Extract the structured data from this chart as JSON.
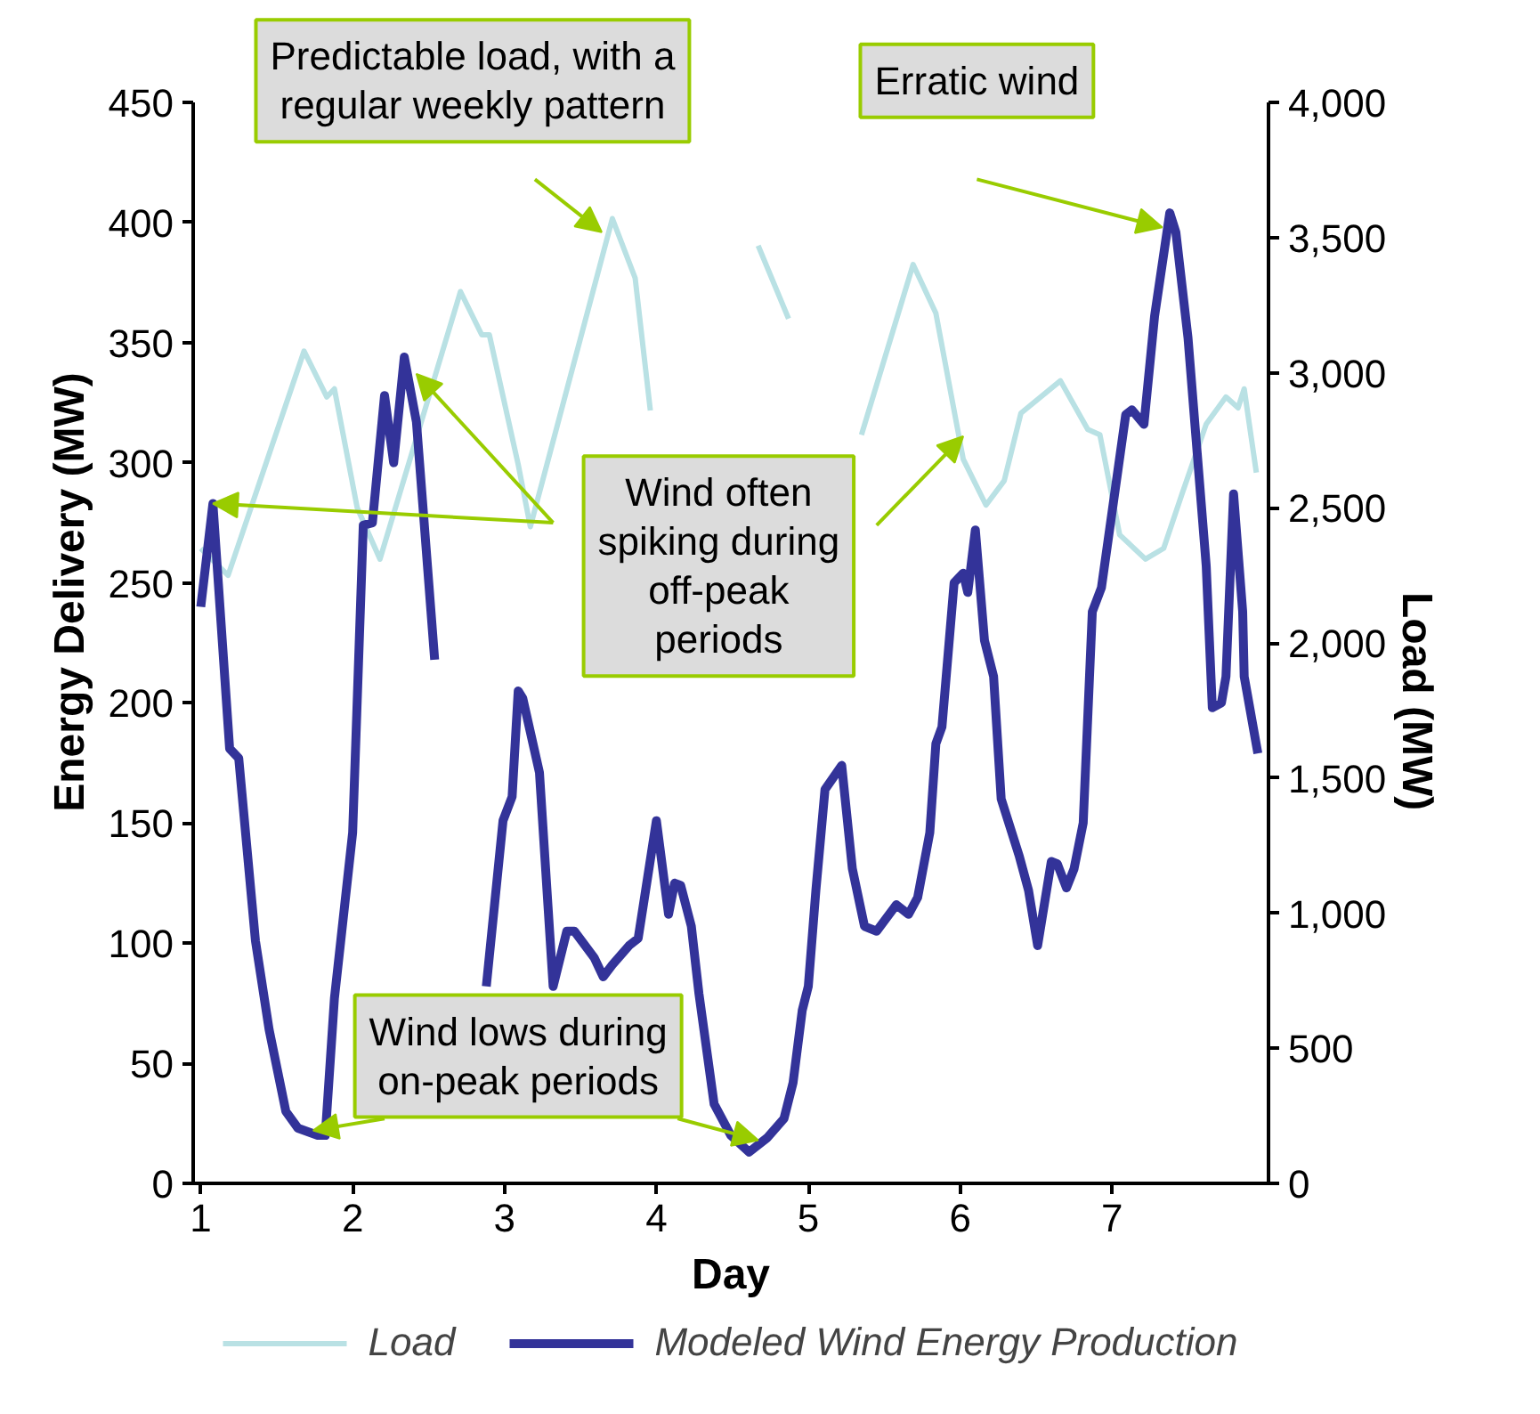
{
  "chart_data": {
    "type": "line",
    "xlabel": "Day",
    "ylabel": "Energy Delivery (MW)",
    "y2label": "Load (MW)",
    "xlim": [
      0.95,
      8.03
    ],
    "xticks": [
      1,
      2,
      3,
      4,
      5,
      6,
      7
    ],
    "ylim": [
      0,
      450
    ],
    "yticks": [
      0,
      50,
      100,
      150,
      200,
      250,
      300,
      350,
      400,
      450
    ],
    "y2lim": [
      0,
      4000
    ],
    "y2ticks": [
      0,
      500,
      {
        "value": 1000,
        "label": "1,000"
      },
      {
        "value": 1500,
        "label": "1,500"
      },
      {
        "value": 2000,
        "label": "2,000"
      },
      {
        "value": 2500,
        "label": "2,500"
      },
      {
        "value": 3000,
        "label": "3,000"
      },
      {
        "value": 3500,
        "label": "3,500"
      },
      {
        "value": 4000,
        "label": "4,000"
      }
    ],
    "grid": false,
    "legend": "bottom",
    "line_style": "solid",
    "marker": "none",
    "series": [
      {
        "name": "Load",
        "color": "#b9e1e4",
        "axis": "y2",
        "x": [
          1.0,
          1.18,
          1.68,
          1.83,
          1.88,
          2.03,
          2.18,
          2.71,
          2.85,
          2.9,
          3.09,
          3.17,
          3.71,
          3.86,
          3.96,
          4.16,
          4.67,
          4.87,
          5.0,
          5.08,
          5.22,
          5.35,
          5.69,
          5.84,
          6.02,
          6.17,
          6.29,
          6.4,
          6.66,
          6.84,
          6.92,
          7.05,
          7.22,
          7.34,
          7.46,
          7.62,
          7.75,
          7.83,
          7.87,
          7.95
        ],
        "values": [
          2350,
          2250,
          3080,
          2910,
          2940,
          2500,
          2310,
          3300,
          3140,
          3140,
          2660,
          2430,
          3570,
          3350,
          2860,
          null,
          3470,
          3200,
          null,
          null,
          null,
          2770,
          3400,
          3220,
          2680,
          2510,
          2600,
          2850,
          2970,
          2790,
          2770,
          2400,
          2310,
          2350,
          2550,
          2810,
          2910,
          2870,
          2940,
          2630
        ]
      },
      {
        "name": "Modeled Wind Energy Production",
        "color": "#333399",
        "axis": "y",
        "x": [
          1.0,
          1.08,
          1.19,
          1.25,
          1.36,
          1.45,
          1.56,
          1.64,
          1.77,
          1.82,
          1.88,
          2.0,
          2.07,
          2.13,
          2.21,
          2.27,
          2.34,
          2.42,
          2.54,
          2.7,
          2.78,
          2.88,
          2.99,
          3.05,
          3.09,
          3.12,
          3.23,
          3.32,
          3.41,
          3.46,
          3.59,
          3.65,
          3.71,
          3.82,
          3.88,
          4.0,
          4.08,
          4.12,
          4.16,
          4.23,
          4.28,
          4.38,
          4.49,
          4.61,
          4.73,
          4.84,
          4.9,
          4.96,
          5.0,
          5.05,
          5.11,
          5.22,
          5.29,
          5.37,
          5.45,
          5.58,
          5.66,
          5.72,
          5.8,
          5.84,
          5.88,
          5.96,
          6.02,
          6.05,
          6.1,
          6.16,
          6.22,
          6.27,
          6.39,
          6.45,
          6.51,
          6.6,
          6.64,
          6.7,
          6.75,
          6.81,
          6.87,
          6.93,
          7.09,
          7.13,
          7.21,
          7.28,
          7.38,
          7.42,
          7.5,
          7.62,
          7.66,
          7.72,
          7.75,
          7.8,
          7.86,
          7.87,
          7.96
        ],
        "values": [
          240,
          283,
          181,
          177,
          101,
          64,
          30,
          23,
          20,
          20,
          77,
          146,
          274,
          275,
          328,
          300,
          344,
          317,
          218,
          null,
          null,
          82,
          151,
          161,
          205,
          202,
          171,
          82,
          105,
          105,
          94,
          86,
          91,
          99,
          102,
          151,
          112,
          125,
          124,
          107,
          79,
          33,
          20,
          13,
          19,
          27,
          42,
          72,
          82,
          122,
          164,
          174,
          131,
          107,
          105,
          116,
          112,
          119,
          146,
          183,
          190,
          250,
          254,
          246,
          272,
          226,
          211,
          160,
          136,
          122,
          99,
          134,
          133,
          123,
          131,
          150,
          238,
          248,
          320,
          322,
          316,
          361,
          404,
          396,
          352,
          257,
          198,
          200,
          211,
          287,
          238,
          211,
          179
        ]
      }
    ],
    "annotations": [
      {
        "text": "Predictable load, with a\nregular weekly pattern",
        "x": 3.64,
        "y": 396
      },
      "Erratic wind",
      {
        "text": "Wind often\nspiking during\noff-peak\nperiods",
        "x": 1.08,
        "y": 283
      },
      {
        "text": "Wind lows during\non-peak periods",
        "x": 1.74,
        "y": 22
      }
    ]
  }
}
